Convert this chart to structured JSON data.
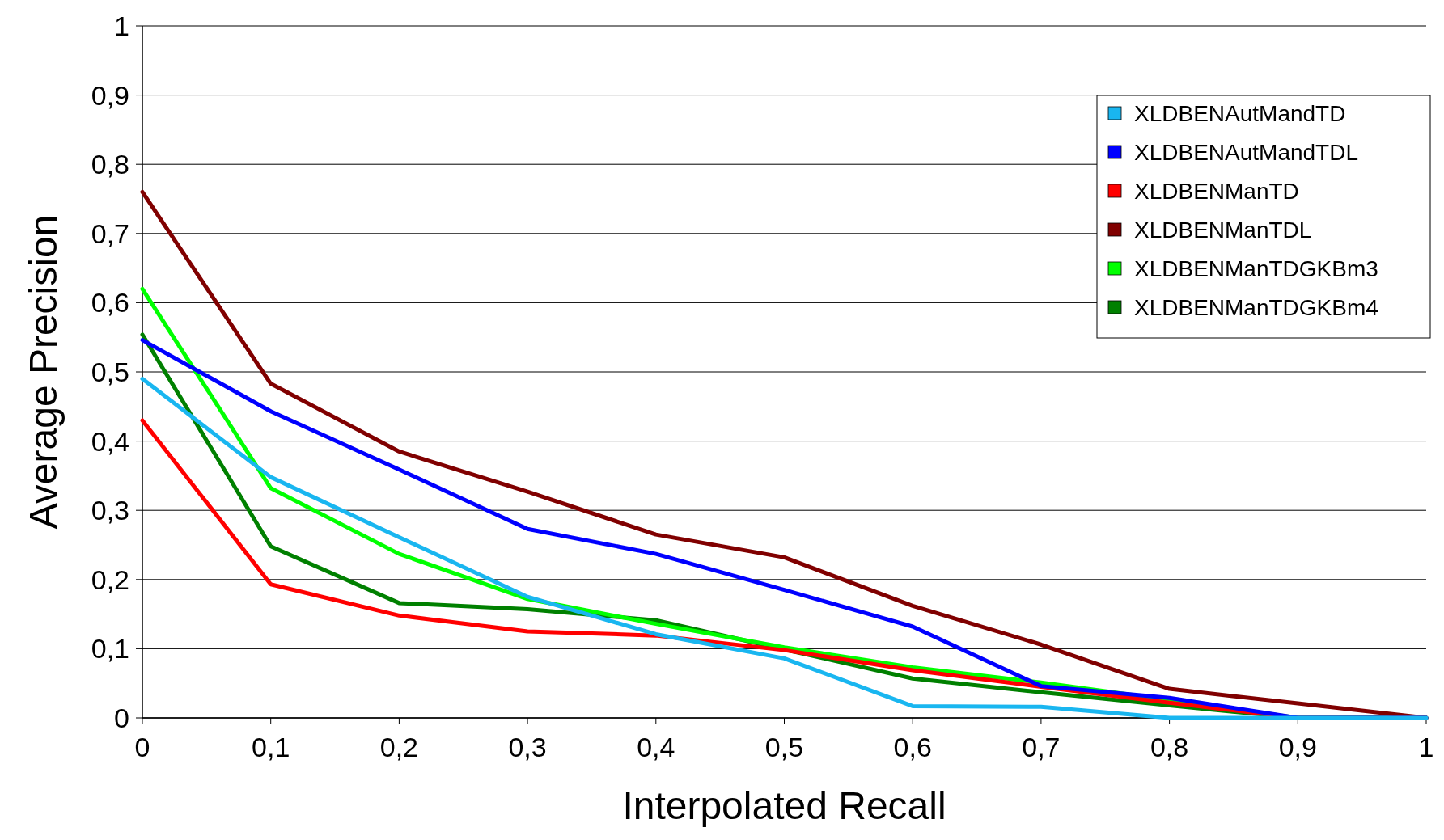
{
  "chart_data": {
    "type": "line",
    "xlabel": "Interpolated Recall",
    "ylabel": "Average Precision",
    "x": [
      0,
      0.1,
      0.2,
      0.3,
      0.4,
      0.5,
      0.6,
      0.7,
      0.8,
      0.9,
      1
    ],
    "series": [
      {
        "name": "XLDBENAutMandTD",
        "color": "#19b6f0",
        "values": [
          0.49,
          0.348,
          0.261,
          0.175,
          0.121,
          0.086,
          0.017,
          0.016,
          0,
          0,
          0
        ]
      },
      {
        "name": "XLDBENAutMandTDL",
        "color": "#0000ff",
        "values": [
          0.546,
          0.443,
          0.359,
          0.273,
          0.237,
          0.185,
          0.132,
          0.046,
          0.029,
          0,
          0
        ]
      },
      {
        "name": "XLDBENManTD",
        "color": "#ff0000",
        "values": [
          0.43,
          0.193,
          0.148,
          0.125,
          0.119,
          0.098,
          0.069,
          0.045,
          0.022,
          0,
          0
        ]
      },
      {
        "name": "XLDBENManTDL",
        "color": "#800000",
        "values": [
          0.76,
          0.483,
          0.385,
          0.327,
          0.265,
          0.232,
          0.162,
          0.106,
          0.042,
          0.021,
          0
        ]
      },
      {
        "name": "XLDBENManTDGKBm3",
        "color": "#00ff00",
        "values": [
          0.62,
          0.332,
          0.237,
          0.172,
          0.136,
          0.102,
          0.073,
          0.051,
          0.026,
          0,
          0
        ]
      },
      {
        "name": "XLDBENManTDGKBm4",
        "color": "#008000",
        "values": [
          0.554,
          0.248,
          0.166,
          0.157,
          0.141,
          0.099,
          0.057,
          0.037,
          0.018,
          0,
          0
        ]
      }
    ],
    "xlim": [
      0,
      1
    ],
    "xticks": [
      0,
      {
        "value": 0.1,
        "label": "0,1"
      },
      {
        "value": 0.2,
        "label": "0,2"
      },
      {
        "value": 0.3,
        "label": "0,3"
      },
      {
        "value": 0.4,
        "label": "0,4"
      },
      {
        "value": 0.5,
        "label": "0,5"
      },
      {
        "value": 0.6,
        "label": "0,6"
      },
      {
        "value": 0.7,
        "label": "0,7"
      },
      {
        "value": 0.8,
        "label": "0,8"
      },
      {
        "value": 0.9,
        "label": "0,9"
      },
      1
    ],
    "ylim": [
      0,
      1
    ],
    "yticks": [
      0,
      {
        "value": 0.1,
        "label": "0,1"
      },
      {
        "value": 0.2,
        "label": "0,2"
      },
      {
        "value": 0.3,
        "label": "0,3"
      },
      {
        "value": 0.4,
        "label": "0,4"
      },
      {
        "value": 0.5,
        "label": "0,5"
      },
      {
        "value": 0.6,
        "label": "0,6"
      },
      {
        "value": 0.7,
        "label": "0,7"
      },
      {
        "value": 0.8,
        "label": "0,8"
      },
      {
        "value": 0.9,
        "label": "0,9"
      },
      1
    ],
    "grid": "y",
    "legend": "top right",
    "marker": "none",
    "line_style": "solid"
  }
}
